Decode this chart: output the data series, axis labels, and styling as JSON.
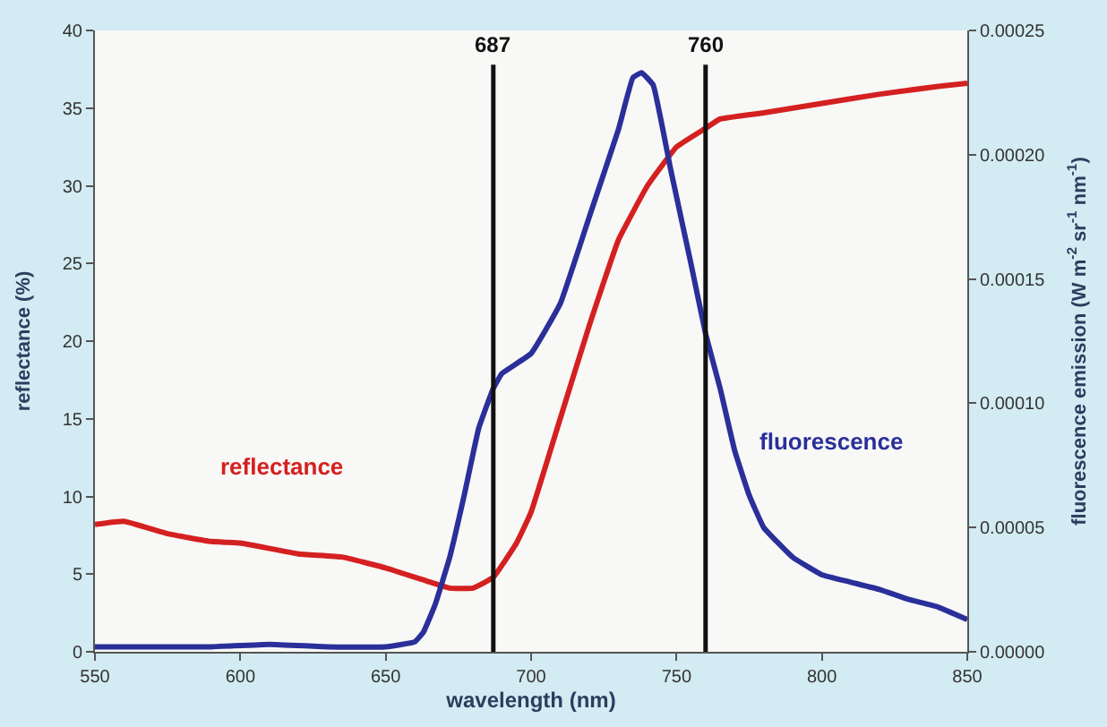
{
  "chart_data": {
    "type": "line",
    "xlabel": "wavelength (nm)",
    "ylabel": "reflectance (%)",
    "y2label": "fluorescence emission (W m$^{-2}$ sr$^{-1}$ nm$^{-1}$)",
    "xlim": [
      550,
      850
    ],
    "xticks": [
      550,
      600,
      650,
      700,
      750,
      800,
      850
    ],
    "ylim": [
      0,
      40
    ],
    "yticks": [
      0,
      5,
      10,
      15,
      20,
      25,
      30,
      35,
      40
    ],
    "y2lim": [
      0,
      0.00025
    ],
    "y2ticks": [
      {
        "value": 0,
        "label": "0.00000"
      },
      {
        "value": 5e-05,
        "label": "0.00005"
      },
      {
        "value": 0.0001,
        "label": "0.00010"
      },
      {
        "value": 0.00015,
        "label": "0.00015"
      },
      {
        "value": 0.0002,
        "label": "0.00020"
      },
      {
        "value": 0.00025,
        "label": "0.00025"
      }
    ],
    "grid": false,
    "legend": false,
    "series": [
      {
        "name": "reflectance",
        "color": "#d42020",
        "x": [
          550,
          560,
          575,
          590,
          600,
          620,
          635,
          650,
          665,
          672,
          680,
          687,
          695,
          700,
          710,
          720,
          730,
          740,
          750,
          760,
          765,
          780,
          800,
          820,
          840,
          850
        ],
        "values": [
          8.2,
          8.4,
          7.6,
          7.1,
          7.0,
          6.3,
          6.1,
          5.4,
          4.5,
          4.1,
          4.1,
          4.8,
          7,
          9,
          15,
          21,
          26.5,
          30,
          32.5,
          33.7,
          34.3,
          34.7,
          35.3,
          35.9,
          36.4,
          36.6
        ]
      },
      {
        "name": "fluorescence",
        "color": "#2a2f9a",
        "axis": "y2",
        "x": [
          550,
          570,
          590,
          610,
          630,
          650,
          660,
          663,
          667,
          672,
          677,
          682,
          687,
          690,
          700,
          710,
          720,
          730,
          735,
          738,
          742,
          748,
          755,
          760,
          765,
          770,
          775,
          780,
          790,
          800,
          810,
          820,
          830,
          840,
          850
        ],
        "values": [
          2e-06,
          2e-06,
          2e-06,
          3e-06,
          2e-06,
          2e-06,
          4e-06,
          8e-06,
          1.9e-05,
          3.8e-05,
          6.3e-05,
          9e-05,
          0.000106,
          0.000112,
          0.00012,
          0.00014,
          0.000175,
          0.00021,
          0.000231,
          0.000233,
          0.000228,
          0.000194,
          0.000156,
          0.000128,
          0.000106,
          8.1e-05,
          6.3e-05,
          5e-05,
          3.8e-05,
          3.1e-05,
          2.8e-05,
          2.5e-05,
          2.1e-05,
          1.8e-05,
          1.3e-05
        ]
      }
    ],
    "ref_lines": [
      {
        "axis": "x",
        "value": 687,
        "label": "687",
        "color": "#111111"
      },
      {
        "axis": "x",
        "value": 760,
        "label": "760",
        "color": "#111111"
      }
    ]
  }
}
